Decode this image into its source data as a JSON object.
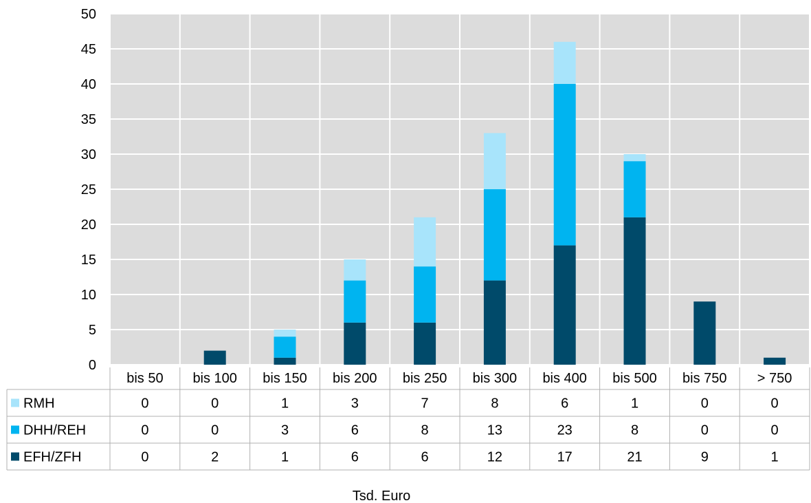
{
  "chart_data": {
    "type": "bar",
    "stacked": true,
    "categories": [
      "bis 50",
      "bis 100",
      "bis 150",
      "bis 200",
      "bis 250",
      "bis 300",
      "bis 400",
      "bis 500",
      "bis 750",
      "> 750"
    ],
    "series": [
      {
        "name": "EFH/ZFH",
        "color": "#004a6a",
        "values": [
          0,
          2,
          1,
          6,
          6,
          12,
          17,
          21,
          9,
          1
        ]
      },
      {
        "name": "DHH/REH",
        "color": "#00b4f0",
        "values": [
          0,
          0,
          3,
          6,
          8,
          13,
          23,
          8,
          0,
          0
        ]
      },
      {
        "name": "RMH",
        "color": "#a8e4fb",
        "values": [
          0,
          0,
          1,
          3,
          7,
          8,
          6,
          1,
          0,
          0
        ]
      }
    ],
    "data_table_order": [
      "RMH",
      "DHH/REH",
      "EFH/ZFH"
    ],
    "ylim": [
      0,
      50
    ],
    "yticks": [
      0,
      5,
      10,
      15,
      20,
      25,
      30,
      35,
      40,
      45,
      50
    ],
    "xlabel": "Tsd. Euro",
    "grid": true,
    "plot_background": "#dcdcdc",
    "legend": "data-table"
  }
}
